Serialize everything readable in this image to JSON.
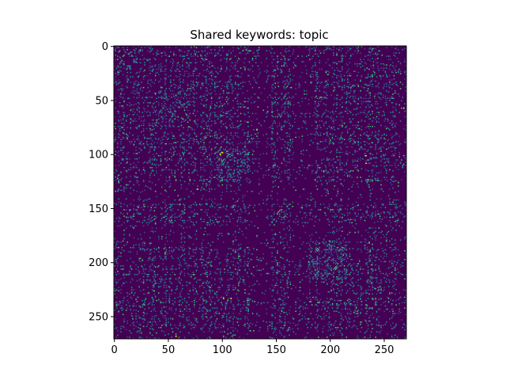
{
  "chart_data": {
    "type": "heatmap",
    "title": "Shared keywords: topic",
    "xlabel": "",
    "ylabel": "",
    "matrix_size": 271,
    "symmetric": true,
    "xlim": [
      0,
      270
    ],
    "ylim": [
      270,
      0
    ],
    "x_ticks": [
      0,
      50,
      100,
      150,
      200,
      250
    ],
    "y_ticks": [
      0,
      50,
      100,
      150,
      200,
      250
    ],
    "colormap": "viridis",
    "value_range": [
      0,
      1
    ],
    "typical_density": 0.18,
    "colors": {
      "background": "#440154",
      "low": "#3b528b",
      "mid": "#21918c",
      "high": "#5ec962",
      "max": "#fde725"
    },
    "dense_blocks": [
      {
        "rows": [
          95,
          125
        ],
        "cols": [
          95,
          125
        ],
        "density": 0.32
      },
      {
        "rows": [
          180,
          215
        ],
        "cols": [
          180,
          215
        ],
        "density": 0.34
      },
      {
        "rows": [
          40,
          70
        ],
        "cols": [
          40,
          70
        ],
        "density": 0.26
      }
    ],
    "sparse_bands": [
      {
        "range": [
          125,
          145
        ],
        "density": 0.07
      },
      {
        "range": [
          165,
          180
        ],
        "density": 0.06
      }
    ],
    "highlight_cells": [
      {
        "row": 57,
        "col": 268,
        "value": 1.0
      },
      {
        "row": 268,
        "col": 57,
        "value": 1.0
      },
      {
        "row": 77,
        "col": 132,
        "value": 0.95
      },
      {
        "row": 132,
        "col": 77,
        "value": 0.95
      },
      {
        "row": 98,
        "col": 100,
        "value": 1.0
      },
      {
        "row": 100,
        "col": 98,
        "value": 1.0
      },
      {
        "row": 108,
        "col": 233,
        "value": 0.95
      },
      {
        "row": 233,
        "col": 108,
        "value": 0.95
      },
      {
        "row": 233,
        "col": 101,
        "value": 0.9
      },
      {
        "row": 101,
        "col": 233,
        "value": 0.9
      },
      {
        "row": 204,
        "col": 205,
        "value": 0.8
      },
      {
        "row": 205,
        "col": 204,
        "value": 0.8
      }
    ]
  }
}
